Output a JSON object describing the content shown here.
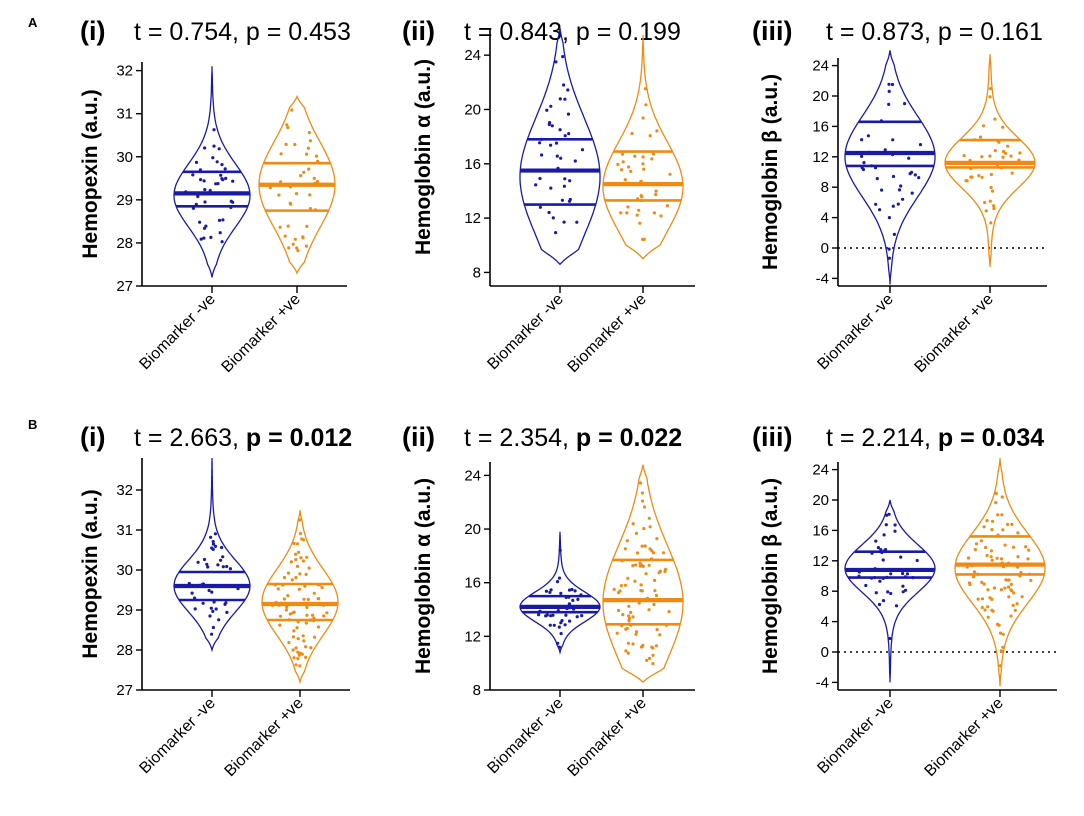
{
  "figure": {
    "row_labels": [
      "A",
      "B"
    ],
    "colors": {
      "negative": "#1a1aa8",
      "positive": "#f08a12",
      "axis": "#000000"
    }
  },
  "chart_data": [
    {
      "type": "violin",
      "row": "A",
      "panel": "(i)",
      "stat_t": "t = 0.754, ",
      "stat_p": "p = 0.453",
      "p_bold": false,
      "ylabel": "Hemopexin (a.u.)",
      "ylim": [
        27,
        32.2
      ],
      "yticks": [
        27,
        28,
        29,
        30,
        31,
        32
      ],
      "ytick_labels": [
        "27",
        "28",
        "29",
        "30",
        "31",
        "32"
      ],
      "zero_line": false,
      "categories": [
        "Biomarker -ve",
        "Biomarker +ve"
      ],
      "series": [
        {
          "name": "Biomarker -ve",
          "color": "#1a1aa8",
          "median": 29.15,
          "q1": 28.85,
          "q3": 29.65,
          "min": 27.2,
          "max": 32.1,
          "mode": 29.1
        },
        {
          "name": "Biomarker +ve",
          "color": "#f08a12",
          "median": 29.35,
          "q1": 28.75,
          "q3": 29.85,
          "min": 27.3,
          "max": 31.4,
          "mode": 29.35
        }
      ]
    },
    {
      "type": "violin",
      "row": "A",
      "panel": "(ii)",
      "stat_t": "t = 0.843, ",
      "stat_p": "p = 0.199",
      "p_bold": false,
      "ylabel": "Hemoglobin α (a.u.)",
      "ylim": [
        7,
        26
      ],
      "yticks": [
        8,
        12,
        16,
        20,
        24
      ],
      "ytick_labels": [
        "8",
        "12",
        "16",
        "20",
        "24"
      ],
      "zero_line": false,
      "categories": [
        "Biomarker -ve",
        "Biomarker +ve"
      ],
      "series": [
        {
          "name": "Biomarker -ve",
          "color": "#1a1aa8",
          "median": 15.5,
          "q1": 13.0,
          "q3": 17.8,
          "min": 8.6,
          "max": 26.0,
          "mode": 15.0
        },
        {
          "name": "Biomarker +ve",
          "color": "#f08a12",
          "median": 14.5,
          "q1": 13.3,
          "q3": 16.9,
          "min": 9.0,
          "max": 25.5,
          "mode": 14.3
        }
      ]
    },
    {
      "type": "violin",
      "row": "A",
      "panel": "(iii)",
      "stat_t": "t = 0.873, ",
      "stat_p": "p = 0.161",
      "p_bold": false,
      "ylabel": "Hemoglobin β (a.u.)",
      "ylim": [
        -5,
        25
      ],
      "yticks": [
        -4,
        0,
        4,
        8,
        12,
        16,
        20,
        24
      ],
      "ytick_labels": [
        "-4",
        "0",
        "4",
        "8",
        "12",
        "16",
        "20",
        "24"
      ],
      "zero_line": true,
      "categories": [
        "Biomarker -ve",
        "Biomarker +ve"
      ],
      "series": [
        {
          "name": "Biomarker -ve",
          "color": "#1a1aa8",
          "median": 12.5,
          "q1": 10.8,
          "q3": 16.6,
          "min": -4.8,
          "max": 26.0,
          "mode": 12.0
        },
        {
          "name": "Biomarker +ve",
          "color": "#f08a12",
          "median": 11.2,
          "q1": 10.6,
          "q3": 14.2,
          "min": -2.5,
          "max": 25.5,
          "mode": 11.2
        }
      ]
    },
    {
      "type": "violin",
      "row": "B",
      "panel": "(i)",
      "stat_t": "t = 2.663, ",
      "stat_p": "p = 0.012",
      "p_bold": true,
      "ylabel": "Hemopexin (a.u.)",
      "ylim": [
        27,
        32.8
      ],
      "yticks": [
        27,
        28,
        29,
        30,
        31,
        32
      ],
      "ytick_labels": [
        "27",
        "28",
        "29",
        "30",
        "31",
        "32"
      ],
      "zero_line": false,
      "categories": [
        "Biomarker -ve",
        "Biomarker +ve"
      ],
      "series": [
        {
          "name": "Biomarker -ve",
          "color": "#1a1aa8",
          "median": 29.6,
          "q1": 29.25,
          "q3": 29.95,
          "min": 28.0,
          "max": 32.8,
          "mode": 29.6
        },
        {
          "name": "Biomarker +ve",
          "color": "#f08a12",
          "median": 29.15,
          "q1": 28.75,
          "q3": 29.65,
          "min": 27.2,
          "max": 31.5,
          "mode": 29.2
        }
      ]
    },
    {
      "type": "violin",
      "row": "B",
      "panel": "(ii)",
      "stat_t": "t = 2.354, ",
      "stat_p": "p = 0.022",
      "p_bold": true,
      "ylabel": "Hemoglobin α (a.u.)",
      "ylim": [
        8,
        25
      ],
      "yticks": [
        8,
        12,
        16,
        20,
        24
      ],
      "ytick_labels": [
        "8",
        "12",
        "16",
        "20",
        "24"
      ],
      "zero_line": false,
      "categories": [
        "Biomarker -ve",
        "Biomarker +ve"
      ],
      "series": [
        {
          "name": "Biomarker -ve",
          "color": "#1a1aa8",
          "median": 14.2,
          "q1": 13.8,
          "q3": 15.0,
          "min": 10.8,
          "max": 19.8,
          "mode": 14.2
        },
        {
          "name": "Biomarker +ve",
          "color": "#f08a12",
          "median": 14.7,
          "q1": 12.9,
          "q3": 17.7,
          "min": 8.6,
          "max": 24.8,
          "mode": 14.5
        }
      ]
    },
    {
      "type": "violin",
      "row": "B",
      "panel": "(iii)",
      "stat_t": "t = 2.214, ",
      "stat_p": "p = 0.034",
      "p_bold": true,
      "ylabel": "Hemoglobin β (a.u.)",
      "ylim": [
        -5,
        25
      ],
      "yticks": [
        -4,
        0,
        4,
        8,
        12,
        16,
        20,
        24
      ],
      "ytick_labels": [
        "-4",
        "0",
        "4",
        "8",
        "12",
        "16",
        "20",
        "24"
      ],
      "zero_line": true,
      "categories": [
        "Biomarker -ve",
        "Biomarker +ve"
      ],
      "series": [
        {
          "name": "Biomarker -ve",
          "color": "#1a1aa8",
          "median": 10.8,
          "q1": 9.8,
          "q3": 13.2,
          "min": -4.0,
          "max": 20.0,
          "mode": 11.0
        },
        {
          "name": "Biomarker +ve",
          "color": "#f08a12",
          "median": 11.5,
          "q1": 10.2,
          "q3": 15.2,
          "min": -4.5,
          "max": 25.5,
          "mode": 11.0
        }
      ]
    }
  ]
}
